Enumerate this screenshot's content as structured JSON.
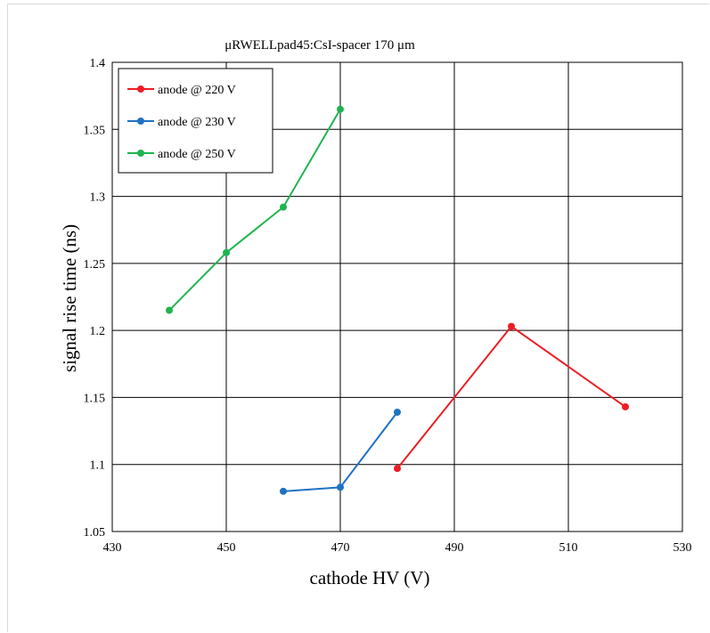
{
  "chart_data": {
    "type": "line",
    "title": "μRWELLpad45:CsI-spacer 170 μm",
    "xlabel": "cathode HV (V)",
    "ylabel": "signal rise time (ns)",
    "xlim": [
      430,
      530
    ],
    "ylim": [
      1.05,
      1.4
    ],
    "xticks": [
      430,
      450,
      470,
      490,
      510,
      530
    ],
    "yticks": [
      1.05,
      1.1,
      1.15,
      1.2,
      1.25,
      1.3,
      1.35,
      1.4
    ],
    "xtick_labels": [
      "430",
      "450",
      "470",
      "490",
      "510",
      "530"
    ],
    "ytick_labels": [
      "1.05",
      "1.1",
      "1.15",
      "1.2",
      "1.25",
      "1.3",
      "1.35",
      "1.4"
    ],
    "grid": true,
    "legend_position": "top-left",
    "series": [
      {
        "name": "anode @ 220 V",
        "color": "#ee1c24",
        "x": [
          480,
          500,
          520
        ],
        "y": [
          1.097,
          1.203,
          1.143
        ]
      },
      {
        "name": "anode @ 230 V",
        "color": "#1f72c1",
        "x": [
          460,
          470,
          480
        ],
        "y": [
          1.08,
          1.083,
          1.139
        ]
      },
      {
        "name": "anode @ 250 V",
        "color": "#1fb450",
        "x": [
          440,
          450,
          460,
          470
        ],
        "y": [
          1.215,
          1.258,
          1.292,
          1.365
        ]
      }
    ]
  }
}
